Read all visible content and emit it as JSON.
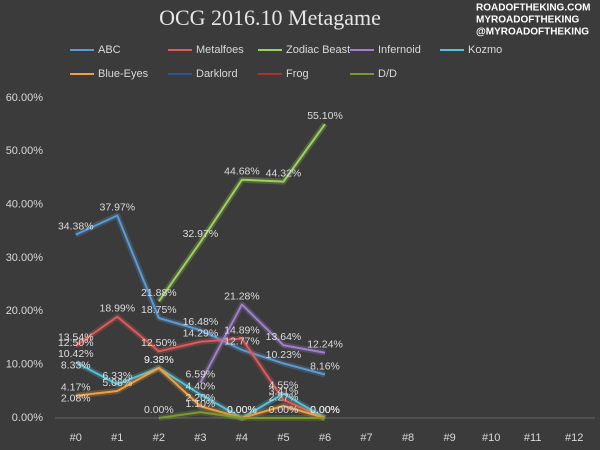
{
  "chart_data": {
    "type": "line",
    "title": "OCG 2016.10 Metagame",
    "watermark": [
      "ROADOFTHEKING.COM",
      "MYROADOFTHEKING",
      "@MYROADOFTHEKING"
    ],
    "categories": [
      "#0",
      "#1",
      "#2",
      "#3",
      "#4",
      "#5",
      "#6",
      "#7",
      "#8",
      "#9",
      "#10",
      "#11",
      "#12"
    ],
    "ylim": [
      0,
      60
    ],
    "yticks": [
      {
        "value": 0,
        "label": "0.00%"
      },
      {
        "value": 10,
        "label": "10.00%"
      },
      {
        "value": 20,
        "label": "20.00%"
      },
      {
        "value": 30,
        "label": "30.00%"
      },
      {
        "value": 40,
        "label": "40.00%"
      },
      {
        "value": 50,
        "label": "50.00%"
      },
      {
        "value": 60,
        "label": "60.00%"
      }
    ],
    "grid": false,
    "legend": "top",
    "series": [
      {
        "name": "ABC",
        "color": "#5b9bd5",
        "values": [
          34.38,
          37.97,
          18.75,
          16.48,
          12.77,
          10.23,
          8.16,
          null,
          null,
          null,
          null,
          null,
          null
        ],
        "value_labels": [
          "34.38%",
          "37.97%",
          "18.75%",
          "16.48%",
          "12.77%",
          "10.23%",
          "8.16%",
          null,
          null,
          null,
          null,
          null,
          null
        ]
      },
      {
        "name": "Metalfoes",
        "color": "#e05a5a",
        "values": [
          13.54,
          18.99,
          12.5,
          14.29,
          14.89,
          3.41,
          0.0,
          null,
          null,
          null,
          null,
          null,
          null
        ],
        "value_labels": [
          "13.54%",
          "18.99%",
          "12.50%",
          "14.29%",
          "14.89%",
          "3.41%",
          "0.00%",
          null,
          null,
          null,
          null,
          null,
          null
        ]
      },
      {
        "name": "Zodiac Beast",
        "color": "#9bd35a",
        "values": [
          null,
          null,
          21.88,
          32.97,
          44.68,
          44.32,
          55.1,
          null,
          null,
          null,
          null,
          null,
          null
        ],
        "value_labels": [
          null,
          null,
          "21.88%",
          "32.97%",
          "44.68%",
          "44.32%",
          "55.10%",
          null,
          null,
          null,
          null,
          null,
          null
        ]
      },
      {
        "name": "Infernoid",
        "color": "#a07fcf",
        "values": [
          null,
          null,
          null,
          6.59,
          21.28,
          13.64,
          12.24,
          null,
          null,
          null,
          null,
          null,
          null
        ],
        "value_labels": [
          null,
          null,
          null,
          "6.59%",
          "21.28%",
          "13.64%",
          "12.24%",
          null,
          null,
          null,
          null,
          null,
          null
        ]
      },
      {
        "name": "Kozmo",
        "color": "#4fc3d9",
        "values": [
          10.42,
          6.33,
          9.38,
          4.4,
          0.0,
          4.55,
          0.0,
          null,
          null,
          null,
          null,
          null,
          null
        ],
        "value_labels": [
          "10.42%",
          "6.33%",
          "9.38%",
          "4.40%",
          "0.00%",
          "4.55%",
          "0.00%",
          null,
          null,
          null,
          null,
          null,
          null
        ]
      },
      {
        "name": "Blue-Eyes",
        "color": "#f0a040",
        "values": [
          4.17,
          5.06,
          9.38,
          2.2,
          0.0,
          2.27,
          0.0,
          null,
          null,
          null,
          null,
          null,
          null
        ],
        "value_labels": [
          "4.17%",
          "5.06%",
          "9.38%",
          "2.20%",
          "0.00%",
          "2.27%",
          "0.00%",
          null,
          null,
          null,
          null,
          null,
          null
        ]
      },
      {
        "name": "Darklord",
        "color": "#2f5597",
        "values": [
          12.5,
          null,
          null,
          null,
          null,
          null,
          null,
          null,
          null,
          null,
          null,
          null,
          null
        ],
        "value_labels": [
          "12.50%",
          null,
          null,
          null,
          null,
          null,
          null,
          null,
          null,
          null,
          null,
          null,
          null
        ]
      },
      {
        "name": "Frog",
        "color": "#b03030",
        "values": [
          8.33,
          null,
          null,
          null,
          null,
          null,
          null,
          null,
          null,
          null,
          null,
          null,
          null
        ],
        "value_labels": [
          "8.33%",
          null,
          null,
          null,
          null,
          null,
          null,
          null,
          null,
          null,
          null,
          null,
          null
        ]
      },
      {
        "name": "D/D",
        "color": "#7a9a30",
        "values": [
          2.08,
          null,
          0.0,
          1.1,
          0.0,
          0.0,
          0.0,
          null,
          null,
          null,
          null,
          null,
          null
        ],
        "value_labels": [
          "2.08%",
          null,
          "0.00%",
          "1.10%",
          "0.00%",
          "0.00%",
          "0.00%",
          null,
          null,
          null,
          null,
          null,
          null
        ]
      }
    ]
  }
}
